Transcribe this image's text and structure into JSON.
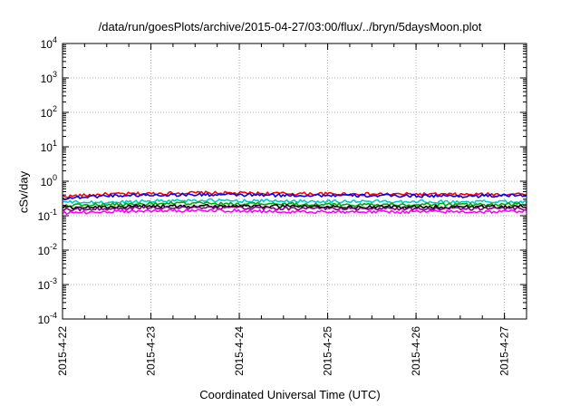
{
  "chart_data": {
    "type": "line",
    "title": "/data/run/goesPlots/archive/2015-04-27/03:00/flux/../bryn/5daysMoon.plot",
    "xlabel": "Coordinated Universal Time (UTC)",
    "ylabel": "cSv/day",
    "x_scale": "time",
    "y_scale": "log",
    "xlim": [
      "2015-04-22",
      "2015-04-27T06:00"
    ],
    "ylim": [
      0.0001,
      10000
    ],
    "grid": true,
    "x_ticks": [
      "2015-4-22",
      "2015-4-23",
      "2015-4-24",
      "2015-4-25",
      "2015-4-26",
      "2015-4-27"
    ],
    "y_ticks": [
      {
        "base": "10",
        "exp": "4"
      },
      {
        "base": "10",
        "exp": "3"
      },
      {
        "base": "10",
        "exp": "2"
      },
      {
        "base": "10",
        "exp": "1"
      },
      {
        "base": "10",
        "exp": "0"
      },
      {
        "base": "10",
        "exp": "-1"
      },
      {
        "base": "10",
        "exp": "-2"
      },
      {
        "base": "10",
        "exp": "-3"
      },
      {
        "base": "10",
        "exp": "-4"
      }
    ],
    "x": [
      "2015-04-22",
      "2015-04-22T12:00",
      "2015-04-23",
      "2015-04-23T12:00",
      "2015-04-24",
      "2015-04-24T12:00",
      "2015-04-25",
      "2015-04-25T12:00",
      "2015-04-26",
      "2015-04-26T12:00",
      "2015-04-27",
      "2015-04-27T06:00"
    ],
    "series": [
      {
        "color": "#ff0000",
        "values": [
          0.36,
          0.42,
          0.44,
          0.46,
          0.45,
          0.44,
          0.43,
          0.42,
          0.42,
          0.41,
          0.42,
          0.43
        ]
      },
      {
        "color": "#0000ff",
        "values": [
          0.32,
          0.38,
          0.4,
          0.41,
          0.4,
          0.39,
          0.39,
          0.38,
          0.38,
          0.37,
          0.38,
          0.39
        ]
      },
      {
        "color": "#00cccc",
        "values": [
          0.25,
          0.24,
          0.27,
          0.28,
          0.27,
          0.27,
          0.26,
          0.26,
          0.26,
          0.25,
          0.26,
          0.26
        ]
      },
      {
        "color": "#00aa00",
        "values": [
          0.2,
          0.21,
          0.22,
          0.23,
          0.22,
          0.22,
          0.21,
          0.21,
          0.21,
          0.21,
          0.21,
          0.22
        ]
      },
      {
        "color": "#000000",
        "values": [
          0.17,
          0.18,
          0.19,
          0.19,
          0.19,
          0.19,
          0.18,
          0.18,
          0.18,
          0.18,
          0.18,
          0.19
        ]
      },
      {
        "color": "#800080",
        "values": [
          0.15,
          0.16,
          0.17,
          0.17,
          0.17,
          0.16,
          0.16,
          0.16,
          0.16,
          0.16,
          0.16,
          0.16
        ]
      },
      {
        "color": "#ff00ff",
        "values": [
          0.12,
          0.13,
          0.14,
          0.14,
          0.14,
          0.13,
          0.13,
          0.13,
          0.13,
          0.13,
          0.13,
          0.14
        ]
      }
    ]
  }
}
